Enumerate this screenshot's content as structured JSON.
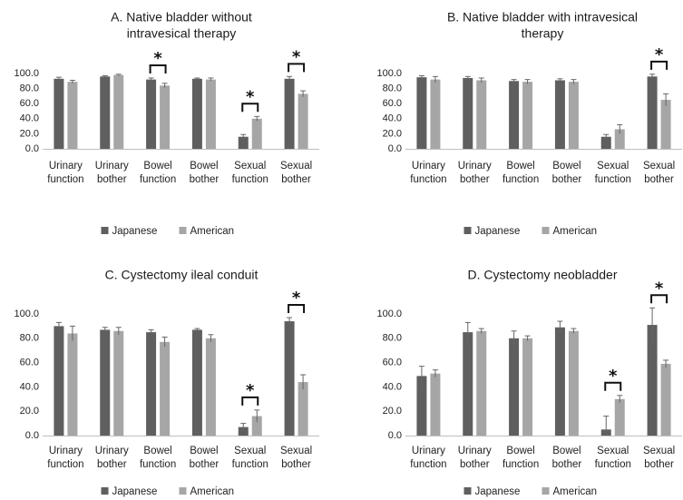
{
  "chart_data": [
    {
      "type": "bar",
      "title_lines": [
        "A. Native bladder without",
        "intravesical therapy"
      ],
      "categories": [
        [
          "Urinary",
          "function"
        ],
        [
          "Urinary",
          "bother"
        ],
        [
          "Bowel",
          "function"
        ],
        [
          "Bowel",
          "bother"
        ],
        [
          "Sexual",
          "function"
        ],
        [
          "Sexual",
          "bother"
        ]
      ],
      "series": [
        {
          "name": "Japanese",
          "values": [
            93,
            96,
            92,
            93,
            16,
            93
          ],
          "errors": [
            2,
            1,
            2,
            1,
            3,
            3
          ]
        },
        {
          "name": "American",
          "values": [
            89,
            98,
            84,
            92,
            40,
            73
          ],
          "errors": [
            2,
            1,
            3,
            2,
            3,
            4
          ]
        }
      ],
      "significant": [
        false,
        false,
        true,
        false,
        true,
        true
      ],
      "ylim": [
        0,
        100
      ],
      "yticks": [
        "0.0",
        "20.0",
        "40.0",
        "60.0",
        "80.0",
        "100.0"
      ],
      "xlabel": "",
      "ylabel": "",
      "legend_position": "bottom"
    },
    {
      "type": "bar",
      "title_lines": [
        "B. Native bladder with intravesical",
        "therapy"
      ],
      "categories": [
        [
          "Urinary",
          "function"
        ],
        [
          "Urinary",
          "bother"
        ],
        [
          "Bowel",
          "function"
        ],
        [
          "Bowel",
          "bother"
        ],
        [
          "Sexual",
          "function"
        ],
        [
          "Sexual",
          "bother"
        ]
      ],
      "series": [
        {
          "name": "Japanese",
          "values": [
            95,
            94,
            90,
            91,
            16,
            96
          ],
          "errors": [
            2,
            2,
            2,
            2,
            3,
            3
          ]
        },
        {
          "name": "American",
          "values": [
            92,
            91,
            89,
            89,
            26,
            65
          ],
          "errors": [
            4,
            3,
            3,
            3,
            6,
            8
          ]
        }
      ],
      "significant": [
        false,
        false,
        false,
        false,
        false,
        true
      ],
      "ylim": [
        0,
        100
      ],
      "yticks": [
        "0.0",
        "20.0",
        "40.0",
        "60.0",
        "80.0",
        "100.0"
      ],
      "xlabel": "",
      "ylabel": "",
      "legend_position": "bottom"
    },
    {
      "type": "bar",
      "title_lines": [
        "C. Cystectomy ileal conduit"
      ],
      "categories": [
        [
          "Urinary",
          "function"
        ],
        [
          "Urinary",
          "bother"
        ],
        [
          "Bowel",
          "function"
        ],
        [
          "Bowel",
          "bother"
        ],
        [
          "Sexual",
          "function"
        ],
        [
          "Sexual",
          "bother"
        ]
      ],
      "series": [
        {
          "name": "Japanese",
          "values": [
            90,
            87,
            85,
            87,
            7,
            94
          ],
          "errors": [
            3,
            2,
            2,
            1,
            3,
            3
          ]
        },
        {
          "name": "American",
          "values": [
            84,
            86,
            77,
            80,
            16,
            44
          ],
          "errors": [
            6,
            3,
            4,
            3,
            5,
            6
          ]
        }
      ],
      "significant": [
        false,
        false,
        false,
        false,
        true,
        true
      ],
      "ylim": [
        0,
        100
      ],
      "yticks": [
        "0.0",
        "20.0",
        "40.0",
        "60.0",
        "80.0",
        "100.0"
      ],
      "xlabel": "",
      "ylabel": "",
      "legend_position": "bottom"
    },
    {
      "type": "bar",
      "title_lines": [
        "D. Cystectomy neobladder"
      ],
      "categories": [
        [
          "Urinary",
          "function"
        ],
        [
          "Urinary",
          "bother"
        ],
        [
          "Bowel",
          "function"
        ],
        [
          "Bowel",
          "bother"
        ],
        [
          "Sexual",
          "function"
        ],
        [
          "Sexual",
          "bother"
        ]
      ],
      "series": [
        {
          "name": "Japanese",
          "values": [
            49,
            85,
            80,
            89,
            5,
            91
          ],
          "errors": [
            8,
            8,
            6,
            5,
            11,
            14
          ]
        },
        {
          "name": "American",
          "values": [
            51,
            86,
            80,
            86,
            30,
            59
          ],
          "errors": [
            3,
            2,
            2,
            2,
            3,
            3
          ]
        }
      ],
      "significant": [
        false,
        false,
        false,
        false,
        true,
        true
      ],
      "ylim": [
        0,
        100
      ],
      "yticks": [
        "0.0",
        "20.0",
        "40.0",
        "60.0",
        "80.0",
        "100.0"
      ],
      "xlabel": "",
      "ylabel": "",
      "legend_position": "bottom"
    }
  ],
  "significance_marker": "*",
  "colors": {
    "Japanese": "#5f5f5f",
    "American": "#a6a6a6",
    "errorbar": "#666666"
  }
}
